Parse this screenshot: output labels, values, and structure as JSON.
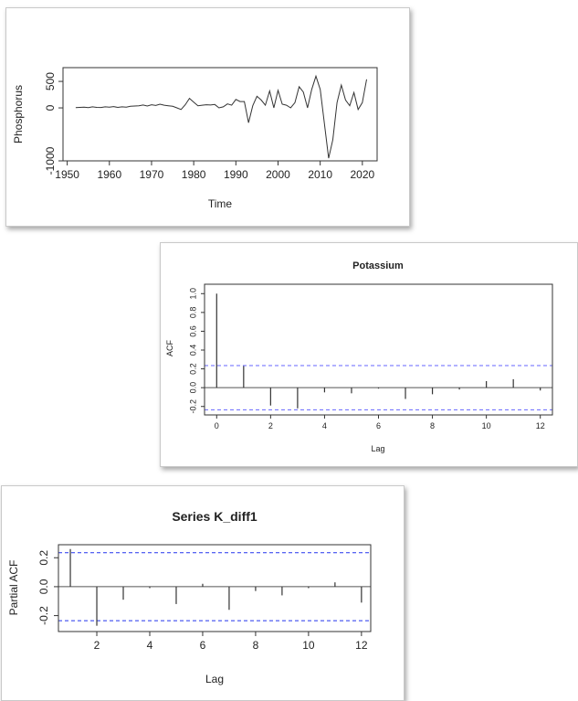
{
  "charts": {
    "phosphorus": {
      "type": "line",
      "title": "",
      "xlabel": "Time",
      "ylabel": "Phosphorus",
      "xlim": [
        1949,
        2023.5
      ],
      "ylim": [
        -1000,
        760
      ],
      "xticks": [
        "1950",
        "1960",
        "1970",
        "1980",
        "1990",
        "2000",
        "2010",
        "2020"
      ],
      "yticks": [
        "-1000",
        "0",
        "500"
      ],
      "x": [
        1952,
        1953,
        1954,
        1955,
        1956,
        1957,
        1958,
        1959,
        1960,
        1961,
        1962,
        1963,
        1964,
        1965,
        1966,
        1967,
        1968,
        1969,
        1970,
        1971,
        1972,
        1973,
        1974,
        1975,
        1976,
        1977,
        1978,
        1979,
        1980,
        1981,
        1982,
        1983,
        1984,
        1985,
        1986,
        1987,
        1988,
        1989,
        1990,
        1991,
        1992,
        1993,
        1994,
        1995,
        1996,
        1997,
        1998,
        1999,
        2000,
        2001,
        2002,
        2003,
        2004,
        2005,
        2006,
        2007,
        2008,
        2009,
        2010,
        2011,
        2012,
        2013,
        2014,
        2015,
        2016,
        2017,
        2018,
        2019,
        2020,
        2021
      ],
      "values": [
        5,
        10,
        15,
        5,
        20,
        10,
        8,
        20,
        15,
        25,
        10,
        20,
        15,
        30,
        35,
        40,
        55,
        35,
        60,
        45,
        70,
        50,
        40,
        30,
        0,
        -30,
        60,
        180,
        110,
        40,
        50,
        60,
        55,
        65,
        0,
        20,
        75,
        50,
        160,
        120,
        120,
        -280,
        40,
        220,
        150,
        50,
        320,
        0,
        330,
        70,
        50,
        0,
        100,
        400,
        300,
        0,
        350,
        600,
        350,
        -300,
        -950,
        -600,
        100,
        430,
        150,
        40,
        290,
        -30,
        100,
        540
      ]
    },
    "potassium": {
      "type": "bar",
      "title": "Potassium",
      "xlabel": "Lag",
      "ylabel": "ACF",
      "xlim": [
        -0.45,
        12.45
      ],
      "ylim": [
        -0.29,
        1.1
      ],
      "xticks": [
        "0",
        "2",
        "4",
        "6",
        "8",
        "10",
        "12"
      ],
      "yticks": [
        "-0.2",
        "0.0",
        "0.2",
        "0.4",
        "0.6",
        "0.8",
        "1.0"
      ],
      "confidence_band": 0.235,
      "band_color": "#6666ff",
      "x": [
        0,
        1,
        2,
        3,
        4,
        5,
        6,
        7,
        8,
        9,
        10,
        11,
        12
      ],
      "values": [
        1.0,
        0.23,
        -0.19,
        -0.22,
        -0.05,
        -0.06,
        -0.01,
        -0.12,
        -0.07,
        -0.02,
        0.07,
        0.09,
        -0.03
      ]
    },
    "k_diff1": {
      "type": "bar",
      "title": "Series  K_diff1",
      "xlabel": "Lag",
      "ylabel": "Partial ACF",
      "xlim": [
        0.55,
        12.35
      ],
      "ylim": [
        -0.31,
        0.29
      ],
      "xticks": [
        "2",
        "4",
        "6",
        "8",
        "10",
        "12"
      ],
      "yticks": [
        "-0.2",
        "0.0",
        "0.2"
      ],
      "confidence_band": 0.235,
      "band_color": "#2233ee",
      "x": [
        1,
        2,
        3,
        4,
        5,
        6,
        7,
        8,
        9,
        10,
        11,
        12
      ],
      "values": [
        0.26,
        -0.27,
        -0.09,
        -0.01,
        -0.12,
        0.02,
        -0.16,
        -0.03,
        -0.06,
        -0.01,
        0.03,
        -0.11
      ]
    }
  }
}
